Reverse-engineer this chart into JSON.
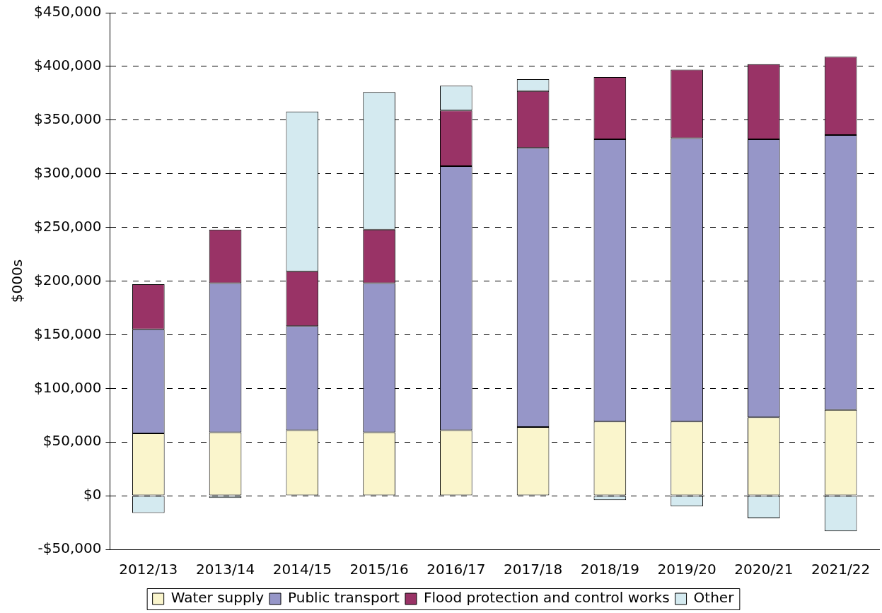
{
  "chart_data": {
    "type": "bar",
    "stacked": true,
    "ylabel": "$000s",
    "categories": [
      "2012/13",
      "2013/14",
      "2014/15",
      "2015/16",
      "2016/17",
      "2017/18",
      "2018/19",
      "2019/20",
      "2020/21",
      "2021/22"
    ],
    "series": [
      {
        "name": "Water supply",
        "color": "#faf5cc",
        "values": [
          58000,
          59000,
          61000,
          59000,
          61000,
          64000,
          69000,
          69000,
          73000,
          80000
        ]
      },
      {
        "name": "Public transport",
        "color": "#9696c8",
        "values": [
          97000,
          139000,
          97000,
          139000,
          246000,
          260000,
          263000,
          264000,
          259000,
          256000
        ]
      },
      {
        "name": "Flood protection and control works",
        "color": "#993366",
        "values": [
          42000,
          50000,
          51000,
          50000,
          52000,
          53000,
          58000,
          64000,
          70000,
          73000
        ]
      },
      {
        "name": "Other",
        "color": "#d4eaf0",
        "values": [
          -16000,
          -2000,
          149000,
          128000,
          23000,
          11000,
          -4000,
          -10000,
          -21000,
          -33000
        ]
      }
    ],
    "ylim": [
      -50000,
      450000
    ],
    "yticks": [
      {
        "value": -50000,
        "label": "-$50,000"
      },
      {
        "value": 0,
        "label": "$0"
      },
      {
        "value": 50000,
        "label": "$50,000"
      },
      {
        "value": 100000,
        "label": "$100,000"
      },
      {
        "value": 150000,
        "label": "$150,000"
      },
      {
        "value": 200000,
        "label": "$200,000"
      },
      {
        "value": 250000,
        "label": "$250,000"
      },
      {
        "value": 300000,
        "label": "$300,000"
      },
      {
        "value": 350000,
        "label": "$350,000"
      },
      {
        "value": 400000,
        "label": "$400,000"
      },
      {
        "value": 450000,
        "label": "$450,000"
      }
    ],
    "grid": "y",
    "legend": "bottom"
  }
}
